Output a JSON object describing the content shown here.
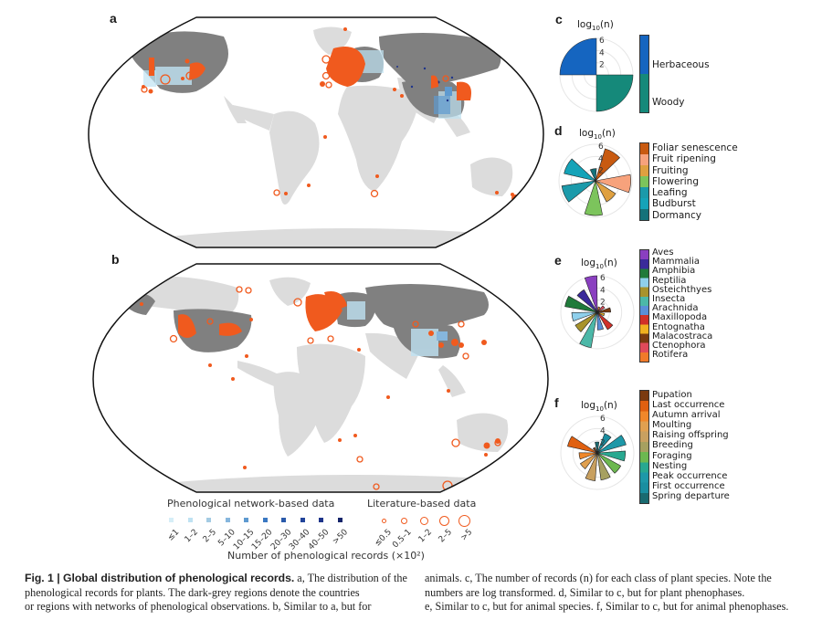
{
  "panels": {
    "a": {
      "letter": "a",
      "title": "Distribution of phenological records for plants"
    },
    "b": {
      "letter": "b",
      "title": "Distribution of phenological records for animals"
    },
    "c": {
      "letter": "c",
      "axis_label_base": "log",
      "axis_label_sub": "10",
      "axis_label_var": "(n)",
      "ticks": [
        "2",
        "4",
        "6"
      ]
    },
    "d": {
      "letter": "d",
      "axis_label_base": "log",
      "axis_label_sub": "10",
      "axis_label_var": "(n)",
      "ticks": [
        "2",
        "4",
        "6"
      ]
    },
    "e": {
      "letter": "e",
      "axis_label_base": "log",
      "axis_label_sub": "10",
      "axis_label_var": "(n)",
      "ticks": [
        "2",
        "4",
        "6"
      ]
    },
    "f": {
      "letter": "f",
      "axis_label_base": "log",
      "axis_label_sub": "10",
      "axis_label_var": "(n)",
      "ticks": [
        "2",
        "4",
        "6"
      ]
    }
  },
  "map_legend": {
    "network_title": "Phenological network-based data",
    "literature_title": "Literature-based data",
    "xlabel": "Number of phenological records (×10²)",
    "network_bins": [
      "≤1",
      "1–2",
      "2–5",
      "5–10",
      "10–15",
      "15–20",
      "20–30",
      "30–40",
      "40–50",
      ">50"
    ],
    "network_colors": [
      "#d6eef7",
      "#bfe2f2",
      "#a4cbe3",
      "#86b6dd",
      "#5e9ad0",
      "#3a78c2",
      "#2a5aaa",
      "#22449a",
      "#1e348a",
      "#14246a"
    ],
    "literature_bins": [
      "≤0.5",
      "0.5–1",
      "1–2",
      "2–5",
      ">5"
    ],
    "literature_color": "#f05a1e"
  },
  "colors": {
    "network_country": "#808080",
    "land": "#dcdcdc",
    "literature_orange": "#f05a1e",
    "frame": "#111111"
  },
  "chart_data": [
    {
      "panel": "c",
      "type": "polar-bar",
      "title": "log10(n)",
      "categories": [
        "Herbaceous",
        "Woody"
      ],
      "values": [
        6.1,
        6.1
      ],
      "colors": [
        "#1565c0",
        "#15897a"
      ],
      "rlim": [
        0,
        6
      ]
    },
    {
      "panel": "d",
      "type": "polar-bar",
      "title": "log10(n)",
      "categories": [
        "Foliar senescence",
        "Fruit ripening",
        "Fruiting",
        "Flowering",
        "Leafing",
        "Budburst",
        "Dormancy"
      ],
      "values": [
        5.5,
        5.8,
        3.9,
        5.7,
        5.6,
        5.3,
        2.0
      ],
      "colors": [
        "#c85a10",
        "#f7a27c",
        "#dfa040",
        "#7cc45c",
        "#1b9aaa",
        "#15a3b8",
        "#15727a"
      ],
      "rlim": [
        0,
        6
      ]
    },
    {
      "panel": "e",
      "type": "polar-bar",
      "title": "log10(n)",
      "categories": [
        "Aves",
        "Mammalia",
        "Amphibia",
        "Reptilia",
        "Osteichthyes",
        "Insecta",
        "Arachnida",
        "Maxillopoda",
        "Entognatha",
        "Malacostraca",
        "Ctenophora",
        "Rotifera"
      ],
      "values": [
        6.0,
        4.3,
        5.4,
        4.2,
        4.2,
        5.9,
        2.9,
        3.3,
        1.2,
        2.2,
        1.4,
        0.9
      ],
      "colors": [
        "#8a3fc0",
        "#3a2a9a",
        "#1f7a3a",
        "#8fd0ec",
        "#a8932c",
        "#4cb8a8",
        "#5a8fd8",
        "#d03028",
        "#f0b020",
        "#7a3a10",
        "#e04a5a",
        "#f07a2a"
      ],
      "rlim": [
        0,
        6
      ]
    },
    {
      "panel": "f",
      "type": "polar-bar",
      "title": "log10(n)",
      "categories": [
        "Pupation",
        "Last occurrence",
        "Autumn arrival",
        "Moulting",
        "Raising offspring",
        "Breeding",
        "Foraging",
        "Nesting",
        "Peak occurrence",
        "First occurrence",
        "Spring departure"
      ],
      "values": [
        1.0,
        5.0,
        3.0,
        3.3,
        4.6,
        4.5,
        4.4,
        4.6,
        4.9,
        3.4,
        1.8
      ],
      "colors": [
        "#7a3a10",
        "#e06010",
        "#f0872a",
        "#e0a050",
        "#c8a060",
        "#a6a060",
        "#6cb850",
        "#28a890",
        "#1e98a8",
        "#1a8ea0",
        "#1a6a70"
      ],
      "rlim": [
        0,
        6
      ]
    }
  ],
  "caption": {
    "fig_label": "Fig. 1 | Global distribution of phenological records.",
    "col1_line1": " a, The distribution of the",
    "col1_line2": "phenological records for plants. The dark-grey regions denote the countries",
    "col1_line3": "or regions with networks of phenological observations. b, Similar to a, but for",
    "col2_line1": "animals. c, The number of records (n) for each class of plant species. Note the",
    "col2_line2": "numbers are log transformed. d, Similar to c, but for plant phenophases.",
    "col2_line3": "e, Similar to c, but for animal species. f, Similar to c, but for animal phenophases."
  }
}
